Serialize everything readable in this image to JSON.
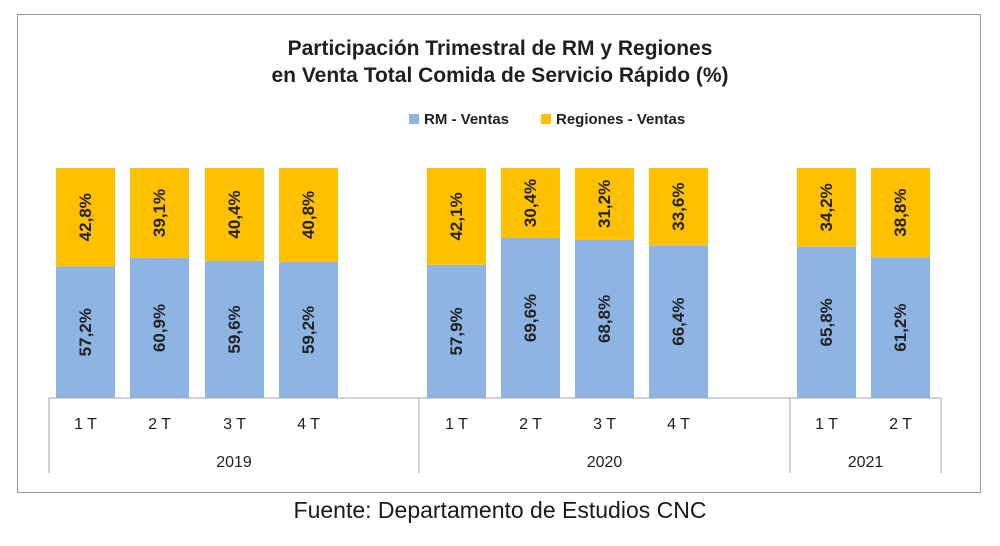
{
  "chart_data": {
    "type": "bar",
    "stacked": true,
    "title": [
      "Participación Trimestral de RM y Regiones",
      "en Venta Total Comida de Servicio Rápido (%)"
    ],
    "legend_position": "top-center",
    "grid": false,
    "ylim": [
      0,
      100
    ],
    "groups": [
      {
        "label": "2019",
        "categories": [
          "1 T",
          "2 T",
          "3 T",
          "4 T"
        ]
      },
      {
        "label": "2020",
        "categories": [
          "1 T",
          "2 T",
          "3 T",
          "4 T"
        ]
      },
      {
        "label": "2021",
        "categories": [
          "1 T",
          "2 T"
        ]
      }
    ],
    "series": [
      {
        "name": "RM - Ventas",
        "color": "#8eb4e3",
        "values": [
          57.2,
          60.9,
          59.6,
          59.2,
          57.9,
          69.6,
          68.8,
          66.4,
          65.8,
          61.2
        ],
        "labels": [
          "57,2%",
          "60,9%",
          "59,6%",
          "59,2%",
          "57,9%",
          "69,6%",
          "68,8%",
          "66,4%",
          "65,8%",
          "61,2%"
        ]
      },
      {
        "name": "Regiones - Ventas",
        "color": "#ffc000",
        "values": [
          42.8,
          39.1,
          40.4,
          40.8,
          42.1,
          30.4,
          31.2,
          33.6,
          34.2,
          38.8
        ],
        "labels": [
          "42,8%",
          "39,1%",
          "40,4%",
          "40,8%",
          "42,1%",
          "30,4%",
          "31,2%",
          "33,6%",
          "34,2%",
          "38,8%"
        ]
      }
    ]
  },
  "source": "Fuente: Departamento de Estudios CNC"
}
